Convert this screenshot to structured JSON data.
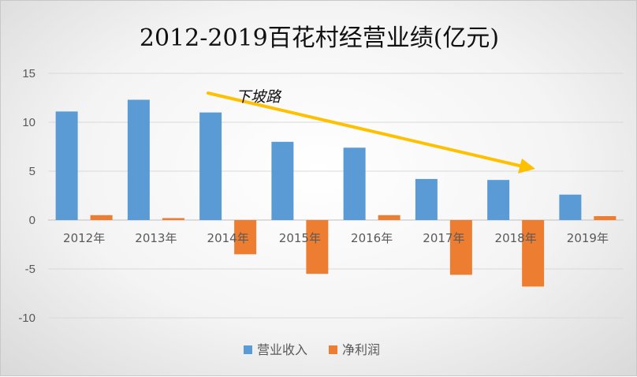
{
  "chart_data": {
    "type": "bar",
    "title": "2012-2019百花村经营业绩(亿元)",
    "categories": [
      "2012年",
      "2013年",
      "2014年",
      "2015年",
      "2016年",
      "2017年",
      "2018年",
      "2019年"
    ],
    "series": [
      {
        "name": "营业收入",
        "values": [
          11.1,
          12.3,
          11.0,
          8.0,
          7.4,
          4.2,
          4.1,
          2.6
        ],
        "color": "#5b9bd5"
      },
      {
        "name": "净利润",
        "values": [
          0.5,
          0.2,
          -3.5,
          -5.5,
          0.5,
          -5.6,
          -6.8,
          0.4
        ],
        "color": "#ed7d31"
      }
    ],
    "ylim": [
      -10,
      15
    ],
    "yticks": [
      15,
      10,
      5,
      0,
      -5,
      -10
    ],
    "grid": true,
    "legend": "bottom",
    "annotation": {
      "text": "下坡路",
      "arrow_color": "#ffc000"
    }
  }
}
